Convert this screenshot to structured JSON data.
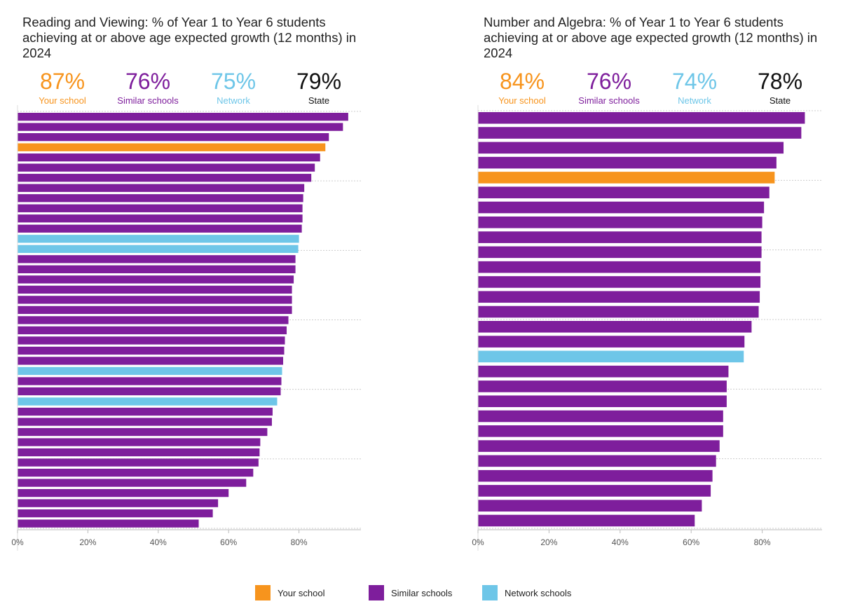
{
  "colors": {
    "your_school": "#f7941d",
    "similar_schools": "#7e1e9c",
    "network": "#6ec6e8",
    "state": "#111111"
  },
  "legend": [
    {
      "label": "Your school",
      "key": "your_school"
    },
    {
      "label": "Similar schools",
      "key": "similar_schools"
    },
    {
      "label": "Network schools",
      "key": "network"
    }
  ],
  "chart_data": [
    {
      "type": "bar",
      "orientation": "horizontal",
      "title": "Reading and Viewing: % of Year 1 to Year 6 students achieving at or above age expected growth (12 months) in 2024",
      "summary": [
        {
          "value": "87%",
          "label": "Your school",
          "key": "your_school"
        },
        {
          "value": "76%",
          "label": "Similar schools",
          "key": "similar_schools"
        },
        {
          "value": "75%",
          "label": "Network",
          "key": "network"
        },
        {
          "value": "79%",
          "label": "State",
          "key": "state"
        }
      ],
      "x_ticks": [
        "0%",
        "20%",
        "40%",
        "60%",
        "80%"
      ],
      "xlim": [
        0,
        97
      ],
      "grid": true,
      "bars": [
        {
          "value": 94,
          "group": "similar_schools"
        },
        {
          "value": 92.5,
          "group": "similar_schools"
        },
        {
          "value": 88.5,
          "group": "similar_schools"
        },
        {
          "value": 87.5,
          "group": "your_school"
        },
        {
          "value": 86,
          "group": "similar_schools"
        },
        {
          "value": 84.5,
          "group": "similar_schools"
        },
        {
          "value": 83.5,
          "group": "similar_schools"
        },
        {
          "value": 81.5,
          "group": "similar_schools"
        },
        {
          "value": 81.2,
          "group": "similar_schools"
        },
        {
          "value": 81,
          "group": "similar_schools"
        },
        {
          "value": 81,
          "group": "similar_schools"
        },
        {
          "value": 80.8,
          "group": "similar_schools"
        },
        {
          "value": 80,
          "group": "network"
        },
        {
          "value": 79.8,
          "group": "network"
        },
        {
          "value": 79,
          "group": "similar_schools"
        },
        {
          "value": 79,
          "group": "similar_schools"
        },
        {
          "value": 78.5,
          "group": "similar_schools"
        },
        {
          "value": 78,
          "group": "similar_schools"
        },
        {
          "value": 78,
          "group": "similar_schools"
        },
        {
          "value": 78,
          "group": "similar_schools"
        },
        {
          "value": 77,
          "group": "similar_schools"
        },
        {
          "value": 76.5,
          "group": "similar_schools"
        },
        {
          "value": 76,
          "group": "similar_schools"
        },
        {
          "value": 75.8,
          "group": "similar_schools"
        },
        {
          "value": 75.5,
          "group": "similar_schools"
        },
        {
          "value": 75.2,
          "group": "network"
        },
        {
          "value": 75,
          "group": "similar_schools"
        },
        {
          "value": 74.8,
          "group": "similar_schools"
        },
        {
          "value": 73.8,
          "group": "network"
        },
        {
          "value": 72.5,
          "group": "similar_schools"
        },
        {
          "value": 72.3,
          "group": "similar_schools"
        },
        {
          "value": 71,
          "group": "similar_schools"
        },
        {
          "value": 69,
          "group": "similar_schools"
        },
        {
          "value": 68.8,
          "group": "similar_schools"
        },
        {
          "value": 68.5,
          "group": "similar_schools"
        },
        {
          "value": 67,
          "group": "similar_schools"
        },
        {
          "value": 65,
          "group": "similar_schools"
        },
        {
          "value": 60,
          "group": "similar_schools"
        },
        {
          "value": 57,
          "group": "similar_schools"
        },
        {
          "value": 55.5,
          "group": "similar_schools"
        },
        {
          "value": 51.5,
          "group": "similar_schools"
        }
      ]
    },
    {
      "type": "bar",
      "orientation": "horizontal",
      "title": "Number and Algebra: % of Year 1 to Year 6 students achieving at or above age expected growth (12 months) in 2024",
      "summary": [
        {
          "value": "84%",
          "label": "Your school",
          "key": "your_school"
        },
        {
          "value": "76%",
          "label": "Similar schools",
          "key": "similar_schools"
        },
        {
          "value": "74%",
          "label": "Network",
          "key": "network"
        },
        {
          "value": "78%",
          "label": "State",
          "key": "state"
        }
      ],
      "x_ticks": [
        "0%",
        "20%",
        "40%",
        "60%",
        "80%"
      ],
      "xlim": [
        0,
        97
      ],
      "grid": true,
      "bars": [
        {
          "value": 92,
          "group": "similar_schools"
        },
        {
          "value": 91,
          "group": "similar_schools"
        },
        {
          "value": 86,
          "group": "similar_schools"
        },
        {
          "value": 84,
          "group": "similar_schools"
        },
        {
          "value": 83.5,
          "group": "your_school"
        },
        {
          "value": 82,
          "group": "similar_schools"
        },
        {
          "value": 80.5,
          "group": "similar_schools"
        },
        {
          "value": 80,
          "group": "similar_schools"
        },
        {
          "value": 79.8,
          "group": "similar_schools"
        },
        {
          "value": 79.8,
          "group": "similar_schools"
        },
        {
          "value": 79.5,
          "group": "similar_schools"
        },
        {
          "value": 79.5,
          "group": "similar_schools"
        },
        {
          "value": 79.3,
          "group": "similar_schools"
        },
        {
          "value": 79,
          "group": "similar_schools"
        },
        {
          "value": 77,
          "group": "similar_schools"
        },
        {
          "value": 75,
          "group": "similar_schools"
        },
        {
          "value": 74.8,
          "group": "network"
        },
        {
          "value": 70.5,
          "group": "similar_schools"
        },
        {
          "value": 70,
          "group": "similar_schools"
        },
        {
          "value": 70,
          "group": "similar_schools"
        },
        {
          "value": 69,
          "group": "similar_schools"
        },
        {
          "value": 69,
          "group": "similar_schools"
        },
        {
          "value": 68,
          "group": "similar_schools"
        },
        {
          "value": 67,
          "group": "similar_schools"
        },
        {
          "value": 66,
          "group": "similar_schools"
        },
        {
          "value": 65.5,
          "group": "similar_schools"
        },
        {
          "value": 63,
          "group": "similar_schools"
        },
        {
          "value": 61,
          "group": "similar_schools"
        }
      ]
    }
  ]
}
